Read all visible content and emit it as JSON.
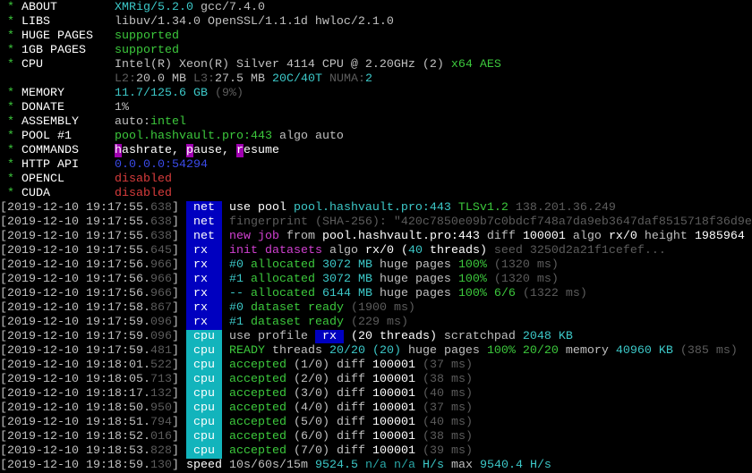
{
  "colors": {
    "green": "#3cc83c",
    "cyan": "#3cc8c8",
    "gray": "#5c5c5c",
    "magenta": "#d040d0",
    "red": "#d83c3c",
    "blue": "#3a4ae8",
    "tag_blue": "#0000c0",
    "tag_teal": "#12b4bc"
  },
  "header": [
    {
      "label": "ABOUT",
      "value": [
        [
          "XMRig/5.2.0",
          "c"
        ],
        [
          " gcc/7.4.0",
          "w"
        ]
      ]
    },
    {
      "label": "LIBS",
      "value": [
        [
          "libuv/1.34.0 OpenSSL/1.1.1d hwloc/2.1.0",
          "w"
        ]
      ]
    },
    {
      "label": "HUGE PAGES",
      "value": [
        [
          "supported",
          "g"
        ]
      ]
    },
    {
      "label": "1GB PAGES",
      "value": [
        [
          "supported",
          "g"
        ]
      ]
    },
    {
      "label": "CPU",
      "value": [
        [
          "Intel(R) Xeon(R) Silver 4114 CPU @ 2.20GHz (2) ",
          "w"
        ],
        [
          "x64 AES",
          "g"
        ]
      ]
    },
    {
      "label": "",
      "value": [
        [
          "L2:",
          "d"
        ],
        [
          "20.0 MB ",
          "w"
        ],
        [
          "L3:",
          "d"
        ],
        [
          "27.5 MB ",
          "w"
        ],
        [
          "20C/40T",
          "c"
        ],
        [
          " NUMA:",
          "d"
        ],
        [
          "2",
          "c"
        ]
      ]
    },
    {
      "label": "MEMORY",
      "value": [
        [
          "11.7/125.6 GB",
          "c"
        ],
        [
          " (9%)",
          "d"
        ]
      ]
    },
    {
      "label": "DONATE",
      "value": [
        [
          "1%",
          "w"
        ]
      ]
    },
    {
      "label": "ASSEMBLY",
      "value": [
        [
          "auto:",
          "w"
        ],
        [
          "intel",
          "g"
        ]
      ]
    },
    {
      "label": "POOL #1",
      "value": [
        [
          "pool.hashvault.pro:443",
          "g"
        ],
        [
          " algo auto",
          "w"
        ]
      ]
    },
    {
      "label": "COMMANDS",
      "value": [
        [
          "h",
          "mbg"
        ],
        [
          "ashrate, ",
          "W"
        ],
        [
          "p",
          "mbg"
        ],
        [
          "ause, ",
          "W"
        ],
        [
          "r",
          "mbg"
        ],
        [
          "esume",
          "W"
        ]
      ]
    },
    {
      "label": "HTTP API",
      "value": [
        [
          "0.0.0.0:54294",
          "b"
        ]
      ]
    },
    {
      "label": "OPENCL",
      "value": [
        [
          "disabled",
          "r"
        ]
      ]
    },
    {
      "label": "CUDA",
      "value": [
        [
          "disabled",
          "r"
        ]
      ]
    }
  ],
  "log": [
    {
      "ts": "2019-12-10 19:17:55.",
      "ms": "638",
      "tag": "net",
      "msg": [
        [
          "use pool ",
          "W"
        ],
        [
          "pool.hashvault.pro:443",
          "c"
        ],
        [
          " ",
          "w"
        ],
        [
          "TLSv1.2",
          "g"
        ],
        [
          " 138.201.36.249",
          "d"
        ]
      ]
    },
    {
      "ts": "2019-12-10 19:17:55.",
      "ms": "638",
      "tag": "net",
      "msg": [
        [
          "fingerprint (SHA-256): \"420c7850e09b7c0bdcf748a7da9eb3647daf8515718f36d9e",
          "d"
        ]
      ]
    },
    {
      "ts": "2019-12-10 19:17:55.",
      "ms": "638",
      "tag": "net",
      "msg": [
        [
          "new job",
          "m"
        ],
        [
          " from ",
          "w"
        ],
        [
          "pool.hashvault.pro:443",
          "W"
        ],
        [
          " diff ",
          "w"
        ],
        [
          "100001",
          "W"
        ],
        [
          " algo ",
          "w"
        ],
        [
          "rx/0",
          "W"
        ],
        [
          " height ",
          "w"
        ],
        [
          "1985964",
          "W"
        ]
      ]
    },
    {
      "ts": "2019-12-10 19:17:55.",
      "ms": "645",
      "tag": "rx",
      "msg": [
        [
          "init datasets",
          "m"
        ],
        [
          " algo ",
          "w"
        ],
        [
          "rx/0",
          "W"
        ],
        [
          " (",
          "W"
        ],
        [
          "40",
          "c"
        ],
        [
          " threads)",
          "W"
        ],
        [
          " seed 3250d2a21f1cefef...",
          "d"
        ]
      ]
    },
    {
      "ts": "2019-12-10 19:17:56.",
      "ms": "966",
      "tag": "rx",
      "msg": [
        [
          "#0",
          "c"
        ],
        [
          " allocated ",
          "g"
        ],
        [
          "3072 MB",
          "c"
        ],
        [
          " huge pages ",
          "w"
        ],
        [
          "100%",
          "g"
        ],
        [
          " (1320 ms)",
          "d"
        ]
      ]
    },
    {
      "ts": "2019-12-10 19:17:56.",
      "ms": "966",
      "tag": "rx",
      "msg": [
        [
          "#1",
          "c"
        ],
        [
          " allocated ",
          "g"
        ],
        [
          "3072 MB",
          "c"
        ],
        [
          " huge pages ",
          "w"
        ],
        [
          "100%",
          "g"
        ],
        [
          " (1320 ms)",
          "d"
        ]
      ]
    },
    {
      "ts": "2019-12-10 19:17:56.",
      "ms": "966",
      "tag": "rx",
      "msg": [
        [
          "--",
          "c"
        ],
        [
          " allocated ",
          "g"
        ],
        [
          "6144 MB",
          "c"
        ],
        [
          " huge pages ",
          "w"
        ],
        [
          "100% 6/6",
          "g"
        ],
        [
          " (1322 ms)",
          "d"
        ]
      ]
    },
    {
      "ts": "2019-12-10 19:17:58.",
      "ms": "867",
      "tag": "rx",
      "msg": [
        [
          "#0",
          "c"
        ],
        [
          " dataset ready",
          "g"
        ],
        [
          " (1900 ms)",
          "d"
        ]
      ]
    },
    {
      "ts": "2019-12-10 19:17:59.",
      "ms": "096",
      "tag": "rx",
      "msg": [
        [
          "#1",
          "c"
        ],
        [
          " dataset ready",
          "g"
        ],
        [
          " (229 ms)",
          "d"
        ]
      ]
    },
    {
      "ts": "2019-12-10 19:17:59.",
      "ms": "096",
      "tag": "cpu",
      "msg": [
        [
          "use profile ",
          "w"
        ],
        [
          " rx ",
          "bbg"
        ],
        [
          " (",
          "W"
        ],
        [
          "20",
          "W"
        ],
        [
          " threads)",
          "W"
        ],
        [
          " scratchpad ",
          "w"
        ],
        [
          "2048 KB",
          "c"
        ]
      ]
    },
    {
      "ts": "2019-12-10 19:17:59.",
      "ms": "481",
      "tag": "cpu",
      "msg": [
        [
          "READY",
          "g"
        ],
        [
          " threads ",
          "w"
        ],
        [
          "20/20",
          "c"
        ],
        [
          " (20)",
          "c"
        ],
        [
          " huge pages ",
          "w"
        ],
        [
          "100% 20/20",
          "g"
        ],
        [
          " memory ",
          "w"
        ],
        [
          "40960 KB",
          "c"
        ],
        [
          " (385 ms)",
          "d"
        ]
      ]
    },
    {
      "ts": "2019-12-10 19:18:01.",
      "ms": "522",
      "tag": "cpu",
      "msg": [
        [
          "accepted",
          "g"
        ],
        [
          " (1/0)",
          "w"
        ],
        [
          " diff ",
          "w"
        ],
        [
          "100001",
          "W"
        ],
        [
          " (37 ms)",
          "d"
        ]
      ]
    },
    {
      "ts": "2019-12-10 19:18:05.",
      "ms": "713",
      "tag": "cpu",
      "msg": [
        [
          "accepted",
          "g"
        ],
        [
          " (2/0)",
          "w"
        ],
        [
          " diff ",
          "w"
        ],
        [
          "100001",
          "W"
        ],
        [
          " (38 ms)",
          "d"
        ]
      ]
    },
    {
      "ts": "2019-12-10 19:18:17.",
      "ms": "132",
      "tag": "cpu",
      "msg": [
        [
          "accepted",
          "g"
        ],
        [
          " (3/0)",
          "w"
        ],
        [
          " diff ",
          "w"
        ],
        [
          "100001",
          "W"
        ],
        [
          " (40 ms)",
          "d"
        ]
      ]
    },
    {
      "ts": "2019-12-10 19:18:50.",
      "ms": "950",
      "tag": "cpu",
      "msg": [
        [
          "accepted",
          "g"
        ],
        [
          " (4/0)",
          "w"
        ],
        [
          " diff ",
          "w"
        ],
        [
          "100001",
          "W"
        ],
        [
          " (37 ms)",
          "d"
        ]
      ]
    },
    {
      "ts": "2019-12-10 19:18:51.",
      "ms": "794",
      "tag": "cpu",
      "msg": [
        [
          "accepted",
          "g"
        ],
        [
          " (5/0)",
          "w"
        ],
        [
          " diff ",
          "w"
        ],
        [
          "100001",
          "W"
        ],
        [
          " (40 ms)",
          "d"
        ]
      ]
    },
    {
      "ts": "2019-12-10 19:18:52.",
      "ms": "016",
      "tag": "cpu",
      "msg": [
        [
          "accepted",
          "g"
        ],
        [
          " (6/0)",
          "w"
        ],
        [
          " diff ",
          "w"
        ],
        [
          "100001",
          "W"
        ],
        [
          " (38 ms)",
          "d"
        ]
      ]
    },
    {
      "ts": "2019-12-10 19:18:53.",
      "ms": "828",
      "tag": "cpu",
      "msg": [
        [
          "accepted",
          "g"
        ],
        [
          " (7/0)",
          "w"
        ],
        [
          " diff ",
          "w"
        ],
        [
          "100001",
          "W"
        ],
        [
          " (39 ms)",
          "d"
        ]
      ]
    },
    {
      "ts": "2019-12-10 19:18:59.",
      "ms": "130",
      "tag": "",
      "msg": [
        [
          "speed",
          "W"
        ],
        [
          " 10s/60s/15m ",
          "w"
        ],
        [
          "9524.5",
          "c"
        ],
        [
          " n/a n/a",
          "dc"
        ],
        [
          " H/s",
          "c"
        ],
        [
          " max ",
          "w"
        ],
        [
          "9540.4 H/s",
          "c"
        ]
      ]
    }
  ]
}
